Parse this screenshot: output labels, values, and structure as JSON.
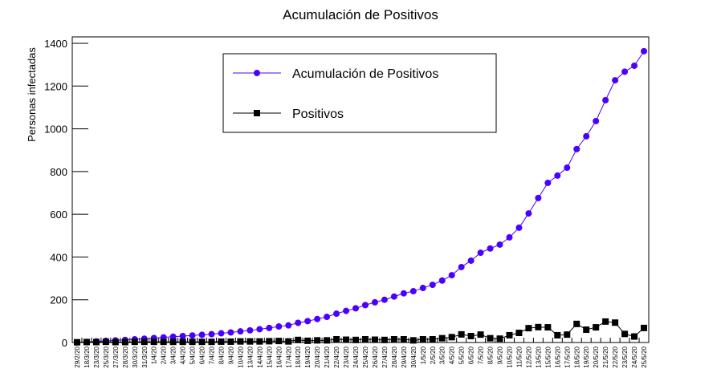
{
  "chart_data": {
    "type": "line",
    "title": "Acumulación de Positivos",
    "y_label": "Personas infectadas",
    "categories": [
      "29/2/20",
      "18/3/20",
      "23/3/20",
      "25/3/20",
      "27/3/20",
      "28/3/20",
      "30/3/20",
      "31/3/20",
      "1/4/20",
      "2/4/20",
      "3/4/20",
      "4/4/20",
      "5/4/20",
      "6/4/20",
      "7/4/20",
      "8/4/20",
      "9/4/20",
      "10/4/20",
      "13/4/20",
      "14/4/20",
      "15/4/20",
      "16/4/20",
      "17/4/20",
      "18/4/20",
      "19/4/20",
      "20/4/20",
      "21/4/20",
      "22/4/20",
      "23/4/20",
      "24/4/20",
      "25/4/20",
      "26/4/20",
      "27/4/20",
      "28/4/20",
      "29/4/20",
      "30/4/20",
      "1/5/20",
      "2/5/20",
      "3/5/20",
      "4/5/20",
      "5/5/20",
      "6/5/20",
      "7/5/20",
      "8/5/20",
      "9/5/20",
      "10/5/20",
      "11/5/20",
      "12/5/20",
      "13/5/20",
      "15/5/20",
      "16/5/20",
      "17/5/20",
      "18/5/20",
      "19/5/20",
      "20/5/20",
      "21/5/20",
      "22/5/20",
      "23/5/20",
      "24/5/20",
      "25/5/20"
    ],
    "series": [
      {
        "name": "Acumulación de Positivos",
        "color": "#4b00ff",
        "marker": "circle",
        "values": [
          1,
          3,
          5,
          8,
          10,
          12,
          15,
          18,
          21,
          24,
          27,
          30,
          33,
          36,
          39,
          43,
          47,
          52,
          57,
          62,
          68,
          75,
          80,
          92,
          100,
          110,
          120,
          135,
          148,
          160,
          175,
          188,
          200,
          215,
          230,
          240,
          255,
          270,
          290,
          315,
          353,
          383,
          420,
          440,
          458,
          492,
          537,
          604,
          676,
          747,
          781,
          818,
          905,
          965,
          1036,
          1134,
          1227,
          1267,
          1295,
          1363
        ]
      },
      {
        "name": "Positivos",
        "color": "#000000",
        "marker": "square",
        "values": [
          1,
          2,
          2,
          3,
          2,
          2,
          3,
          3,
          3,
          3,
          3,
          3,
          3,
          3,
          3,
          4,
          4,
          5,
          5,
          5,
          6,
          7,
          5,
          12,
          8,
          10,
          10,
          15,
          13,
          12,
          15,
          13,
          12,
          15,
          15,
          10,
          15,
          15,
          20,
          25,
          38,
          30,
          37,
          20,
          18,
          34,
          45,
          67,
          72,
          71,
          34,
          37,
          87,
          60,
          71,
          98,
          93,
          40,
          28,
          68
        ]
      }
    ],
    "ylim": [
      0,
      1430
    ],
    "yticks": [
      0,
      200,
      400,
      600,
      800,
      1000,
      1200,
      1400
    ],
    "legend": "top-center"
  }
}
